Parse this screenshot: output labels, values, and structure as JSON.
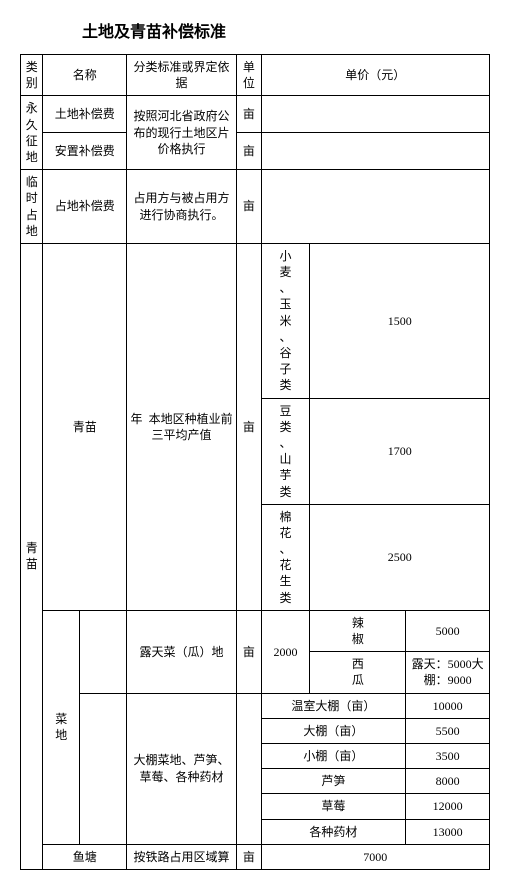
{
  "title": "土地及青苗补偿标准",
  "header": {
    "category": "类别",
    "name": "名称",
    "basis": "分类标准或界定依据",
    "unit": "单位",
    "price": "单价（元）"
  },
  "cat": {
    "permanent": "永久征地",
    "temporary": "临时占地",
    "seedling": "青苗"
  },
  "rows": {
    "landComp": {
      "name": "土地补偿费",
      "basis": "按照河北省政府公布的现行土地区片价格执行",
      "unit": "亩"
    },
    "resettle": {
      "name": "安置补偿费",
      "unit": "亩"
    },
    "occupy": {
      "name": "占地补偿费",
      "basis": "占用方与被占用方进行协商执行。",
      "unit": "亩"
    },
    "qingmiao": {
      "name": "青苗",
      "yearlabel": "年",
      "basis": "本地区种植业前三平均产值",
      "unit": "亩",
      "crop1": "小麦、玉米、谷子类",
      "price1": "1500",
      "crop2": "豆类、山芋类",
      "price2": "1700",
      "crop3": "棉花、花生类",
      "price3": "2500"
    },
    "caidi": {
      "name": "菜地",
      "openair": {
        "basis": "露天菜（瓜）地",
        "unit": "亩",
        "base": "2000",
        "pepper": "辣椒",
        "pepper_price": "5000",
        "melon": "西瓜",
        "melon_price": "露天：5000大棚：9000"
      },
      "shed": {
        "basis": "大棚菜地、芦笋、草莓、各种药材",
        "r1n": "温室大棚（亩）",
        "r1p": "10000",
        "r2n": "大棚（亩）",
        "r2p": "5500",
        "r3n": "小棚（亩）",
        "r3p": "3500",
        "r4n": "芦笋",
        "r4p": "8000",
        "r5n": "草莓",
        "r5p": "12000",
        "r6n": "各种药材",
        "r6p": "13000"
      }
    },
    "pond": {
      "name": "鱼塘",
      "basis": "按铁路占用区域算",
      "unit": "亩",
      "price": "7000"
    }
  }
}
